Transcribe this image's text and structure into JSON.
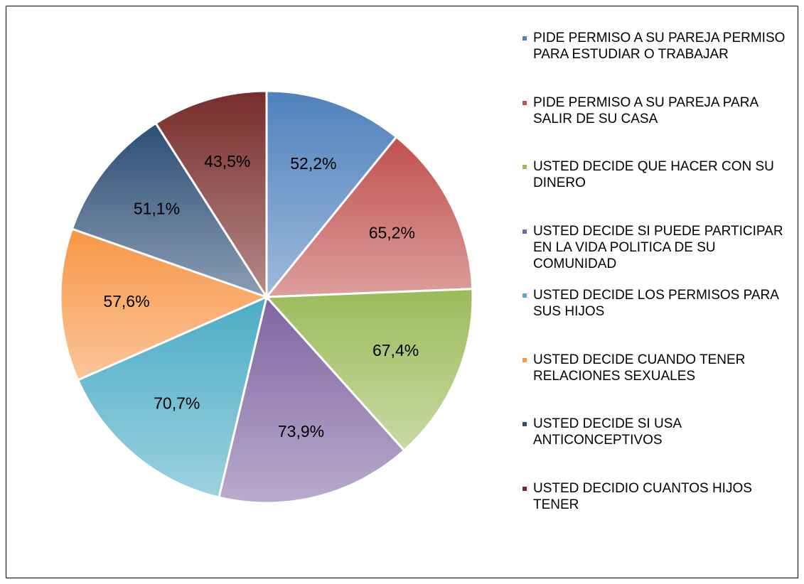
{
  "chart_data": {
    "type": "pie",
    "categories": [
      "PIDE PERMISO A SU PAREJA PERMISO PARA ESTUDIAR O TRABAJAR",
      "PIDE PERMISO A SU PAREJA PARA SALIR DE SU CASA",
      "USTED DECIDE QUE HACER CON SU DINERO",
      "USTED DECIDE SI PUEDE PARTICIPAR EN LA VIDA POLITICA DE SU COMUNIDAD",
      "USTED DECIDE LOS PERMISOS PARA SUS HIJOS",
      "USTED DECIDE CUANDO TENER RELACIONES SEXUALES",
      "USTED DECIDE SI USA ANTICONCEPTIVOS",
      "USTED DECIDIO CUANTOS HIJOS TENER"
    ],
    "values": [
      52.2,
      65.2,
      67.4,
      73.9,
      70.7,
      57.6,
      51.1,
      43.5
    ],
    "value_labels": [
      "52,2%",
      "65,2%",
      "67,4%",
      "73,9%",
      "70,7%",
      "57,6%",
      "51,1%",
      "43,5%"
    ],
    "colors": [
      "#4f81bd",
      "#c0504d",
      "#9bbb59",
      "#8064a2",
      "#4bacc6",
      "#f79646",
      "#2c4d75",
      "#772c2a"
    ],
    "legend": "right"
  }
}
